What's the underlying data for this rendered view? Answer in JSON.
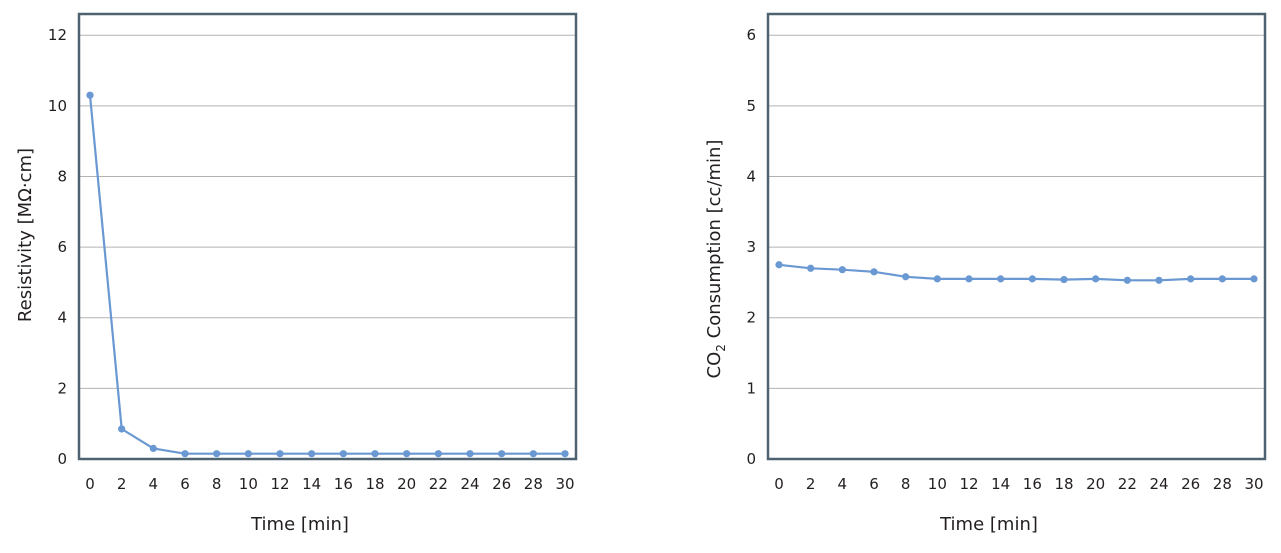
{
  "chart_data": [
    {
      "type": "line",
      "xlabel": "Time [min]",
      "ylabel": "Resistivity [MΩ·cm]",
      "x": [
        0,
        2,
        4,
        6,
        8,
        10,
        12,
        14,
        16,
        18,
        20,
        22,
        24,
        26,
        28,
        30
      ],
      "xticks": [
        "0",
        "2",
        "4",
        "6",
        "8",
        "10",
        "12",
        "14",
        "16",
        "18",
        "20",
        "22",
        "24",
        "26",
        "28",
        "30"
      ],
      "yticks": [
        "0",
        "2",
        "4",
        "6",
        "8",
        "10",
        "12"
      ],
      "ylim": [
        0,
        12.6
      ],
      "grid": true,
      "series": [
        {
          "values": [
            10.3,
            0.85,
            0.3,
            0.15,
            0.15,
            0.15,
            0.15,
            0.15,
            0.15,
            0.15,
            0.15,
            0.15,
            0.15,
            0.15,
            0.15,
            0.15
          ]
        }
      ],
      "color": "#6a98d2"
    },
    {
      "type": "line",
      "xlabel": "Time [min]",
      "ylabel_main": "CO",
      "ylabel_sub": "2",
      "ylabel_rest": " Consumption [cc/min]",
      "x": [
        0,
        2,
        4,
        6,
        8,
        10,
        12,
        14,
        16,
        18,
        20,
        22,
        24,
        26,
        28,
        30
      ],
      "xticks": [
        "0",
        "2",
        "4",
        "6",
        "8",
        "10",
        "12",
        "14",
        "16",
        "18",
        "20",
        "22",
        "24",
        "26",
        "28",
        "30"
      ],
      "yticks": [
        "0",
        "1",
        "2",
        "3",
        "4",
        "5",
        "6"
      ],
      "ylim": [
        0,
        6.3
      ],
      "grid": true,
      "series": [
        {
          "values": [
            2.75,
            2.7,
            2.68,
            2.65,
            2.58,
            2.55,
            2.55,
            2.55,
            2.55,
            2.54,
            2.55,
            2.53,
            2.53,
            2.55,
            2.55,
            2.55
          ]
        }
      ],
      "color": "#6a98d2"
    }
  ]
}
